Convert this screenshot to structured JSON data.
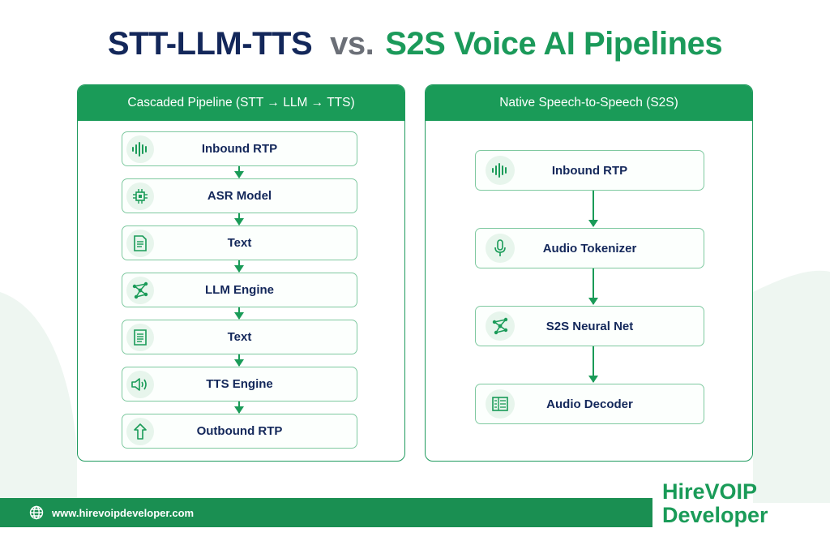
{
  "title": {
    "part1": "STT-LLM-TTS",
    "part2": "vs.",
    "part3": "S2S Voice AI Pipelines"
  },
  "left_panel": {
    "header": "Cascaded Pipeline (STT → LLM → TTS)",
    "nodes": [
      {
        "label": "Inbound RTP",
        "icon": "waveform-icon"
      },
      {
        "label": "ASR Model",
        "icon": "chip-icon"
      },
      {
        "label": "Text",
        "icon": "document-icon"
      },
      {
        "label": "LLM Engine",
        "icon": "neural-network-icon"
      },
      {
        "label": "Text",
        "icon": "document-icon"
      },
      {
        "label": "TTS Engine",
        "icon": "speaker-icon"
      },
      {
        "label": "Outbound RTP",
        "icon": "upload-arrow-icon"
      }
    ]
  },
  "right_panel": {
    "header": "Native Speech-to-Speech (S2S)",
    "nodes": [
      {
        "label": "Inbound RTP",
        "icon": "waveform-icon"
      },
      {
        "label": "Audio Tokenizer",
        "icon": "microphone-icon"
      },
      {
        "label": "S2S Neural Net",
        "icon": "neural-network-icon"
      },
      {
        "label": "Audio Decoder",
        "icon": "decoder-grid-icon"
      }
    ]
  },
  "footer": {
    "url": "www.hirevoipdeveloper.com",
    "brand_line1": "HireVOIP",
    "brand_line2": "Developer"
  },
  "colors": {
    "accent_green": "#1a9b58",
    "navy": "#13275a",
    "gray": "#6b6f77"
  }
}
